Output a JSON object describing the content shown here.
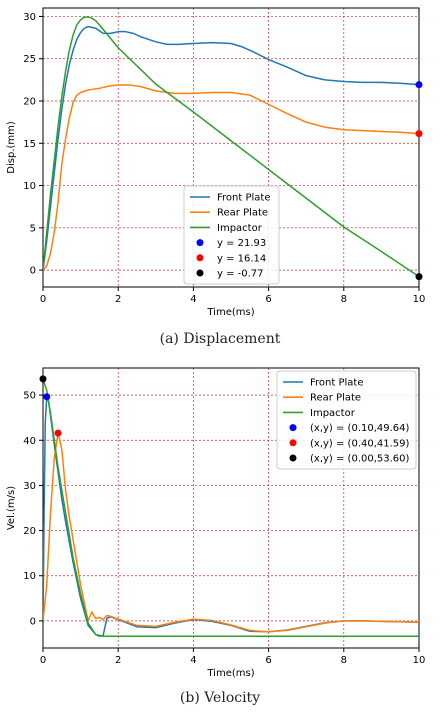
{
  "chart_data": [
    {
      "type": "line",
      "caption": "(a) Displacement",
      "xlabel": "Time(ms)",
      "ylabel": "Disp.(mm)",
      "xlim": [
        0,
        10
      ],
      "ylim": [
        -2,
        31
      ],
      "xticks": [
        0,
        2,
        4,
        6,
        8,
        10
      ],
      "yticks": [
        0,
        5,
        10,
        15,
        20,
        25,
        30
      ],
      "grid": true,
      "legend_placement": "bottom-center",
      "series": [
        {
          "name": "Front Plate",
          "color": "#1f77b4",
          "x": [
            0,
            0.1,
            0.2,
            0.3,
            0.4,
            0.5,
            0.6,
            0.7,
            0.8,
            0.9,
            1.0,
            1.1,
            1.2,
            1.4,
            1.6,
            1.8,
            2.0,
            2.2,
            2.4,
            2.6,
            2.8,
            3.0,
            3.3,
            3.6,
            4.0,
            4.5,
            5.0,
            5.3,
            5.6,
            6.0,
            6.5,
            7.0,
            7.5,
            8.0,
            8.5,
            9.0,
            9.5,
            10.0
          ],
          "y": [
            0,
            3.5,
            7.5,
            11.5,
            15.5,
            19.0,
            22.0,
            24.3,
            26.0,
            27.3,
            28.1,
            28.6,
            28.8,
            28.6,
            28.0,
            28.0,
            28.2,
            28.2,
            28.0,
            27.6,
            27.3,
            27.0,
            26.7,
            26.7,
            26.8,
            26.9,
            26.8,
            26.4,
            25.8,
            24.9,
            24.0,
            23.0,
            22.5,
            22.3,
            22.2,
            22.2,
            22.1,
            21.93
          ]
        },
        {
          "name": "Rear Plate",
          "color": "#ff7f0e",
          "x": [
            0,
            0.1,
            0.2,
            0.3,
            0.4,
            0.5,
            0.6,
            0.7,
            0.8,
            0.9,
            1.0,
            1.2,
            1.5,
            1.8,
            2.0,
            2.3,
            2.6,
            3.0,
            3.5,
            4.0,
            4.5,
            5.0,
            5.5,
            6.0,
            6.5,
            7.0,
            7.5,
            8.0,
            8.5,
            9.0,
            9.5,
            10.0
          ],
          "y": [
            0,
            0.5,
            2.0,
            4.5,
            8.0,
            12.5,
            15.5,
            18.0,
            19.8,
            20.7,
            21.0,
            21.3,
            21.5,
            21.8,
            21.9,
            21.9,
            21.7,
            21.2,
            20.9,
            20.9,
            21.0,
            21.0,
            20.7,
            19.6,
            18.5,
            17.5,
            16.9,
            16.6,
            16.5,
            16.4,
            16.3,
            16.14
          ]
        },
        {
          "name": "Impactor",
          "color": "#2ca02c",
          "x": [
            0,
            0.1,
            0.2,
            0.3,
            0.4,
            0.5,
            0.6,
            0.7,
            0.8,
            0.9,
            1.0,
            1.1,
            1.2,
            1.3,
            1.4,
            1.5,
            2.0,
            3.0,
            4.0,
            5.0,
            6.0,
            7.0,
            8.0,
            9.0,
            10.0
          ],
          "y": [
            0,
            4.5,
            9.0,
            13.0,
            17.0,
            20.5,
            23.5,
            26.0,
            27.8,
            29.0,
            29.6,
            29.9,
            29.95,
            29.8,
            29.5,
            29.0,
            26.3,
            22.0,
            18.7,
            15.3,
            11.9,
            8.5,
            5.1,
            2.2,
            -0.77
          ]
        }
      ],
      "legend_markers": [
        {
          "label": "y = 21.93",
          "color": "#0000ff",
          "x": 10,
          "y": 21.93
        },
        {
          "label": "y = 16.14",
          "color": "#ff0000",
          "x": 10,
          "y": 16.14
        },
        {
          "label": "y = -0.77",
          "color": "#000000",
          "x": 10,
          "y": -0.77
        }
      ]
    },
    {
      "type": "line",
      "caption": "(b) Velocity",
      "xlabel": "Time(ms)",
      "ylabel": "Vel.(m/s)",
      "xlim": [
        0,
        10
      ],
      "ylim": [
        -6,
        56
      ],
      "xticks": [
        0,
        2,
        4,
        6,
        8,
        10
      ],
      "yticks": [
        0,
        10,
        20,
        30,
        40,
        50
      ],
      "grid": true,
      "legend_placement": "top-right",
      "series": [
        {
          "name": "Front Plate",
          "color": "#1f77b4",
          "x": [
            0,
            0.03,
            0.06,
            0.1,
            0.15,
            0.2,
            0.3,
            0.4,
            0.5,
            0.6,
            0.8,
            1.0,
            1.2,
            1.4,
            1.5,
            1.6,
            1.7,
            1.8,
            2.0,
            2.5,
            3.0,
            3.5,
            4.0,
            4.5,
            5.0,
            5.5,
            6.0,
            6.5,
            7.0,
            7.5,
            8.0,
            8.5,
            9.0,
            9.5,
            10.0
          ],
          "y": [
            0,
            25,
            44,
            49.64,
            48.5,
            45.5,
            39,
            33,
            27,
            22,
            13,
            5,
            -1,
            -3,
            -3.4,
            -3.2,
            0.6,
            0.9,
            0.3,
            -1.3,
            -1.5,
            -0.5,
            0.3,
            -0.1,
            -1.0,
            -2.3,
            -2.4,
            -2.0,
            -1.2,
            -0.4,
            0.0,
            0.0,
            -0.1,
            -0.2,
            -0.3
          ]
        },
        {
          "name": "Rear Plate",
          "color": "#ff7f0e",
          "x": [
            0,
            0.1,
            0.2,
            0.3,
            0.4,
            0.5,
            0.6,
            0.7,
            0.8,
            1.0,
            1.2,
            1.3,
            1.4,
            1.5,
            1.6,
            1.7,
            1.8,
            2.0,
            2.5,
            3.0,
            3.5,
            4.0,
            4.5,
            5.0,
            5.5,
            6.0,
            6.5,
            7.0,
            7.5,
            8.0,
            8.5,
            9.0,
            9.5,
            10.0
          ],
          "y": [
            0,
            8,
            24,
            36,
            41.59,
            38,
            29,
            23,
            18,
            8,
            0,
            2,
            0.5,
            0.8,
            0.3,
            1.2,
            1.0,
            0.4,
            -1.0,
            -1.2,
            -0.3,
            0.4,
            0.1,
            -0.9,
            -2.1,
            -2.4,
            -2.1,
            -1.3,
            -0.5,
            0.0,
            0.0,
            -0.1,
            -0.2,
            -0.3
          ]
        },
        {
          "name": "Impactor",
          "color": "#2ca02c",
          "x": [
            0,
            0.1,
            0.2,
            0.3,
            0.4,
            0.5,
            0.6,
            0.8,
            1.0,
            1.2,
            1.4,
            1.6,
            1.8,
            2.0,
            3.0,
            4.0,
            5.0,
            6.0,
            7.0,
            8.0,
            9.0,
            10.0
          ],
          "y": [
            53.6,
            51,
            46,
            40,
            34,
            29,
            24,
            14,
            6,
            -0.5,
            -3.0,
            -3.4,
            -3.4,
            -3.4,
            -3.4,
            -3.4,
            -3.4,
            -3.4,
            -3.4,
            -3.4,
            -3.4,
            -3.4
          ]
        }
      ],
      "legend_markers": [
        {
          "label": "(x,y) = (0.10,49.64)",
          "color": "#0000ff",
          "x": 0.1,
          "y": 49.64
        },
        {
          "label": "(x,y) = (0.40,41.59)",
          "color": "#ff0000",
          "x": 0.4,
          "y": 41.59
        },
        {
          "label": "(x,y) = (0.00,53.60)",
          "color": "#000000",
          "x": 0.0,
          "y": 53.6
        }
      ]
    }
  ],
  "legend_labels_b": [
    "Front Plate",
    "Rear  Plate",
    "Impactor"
  ]
}
